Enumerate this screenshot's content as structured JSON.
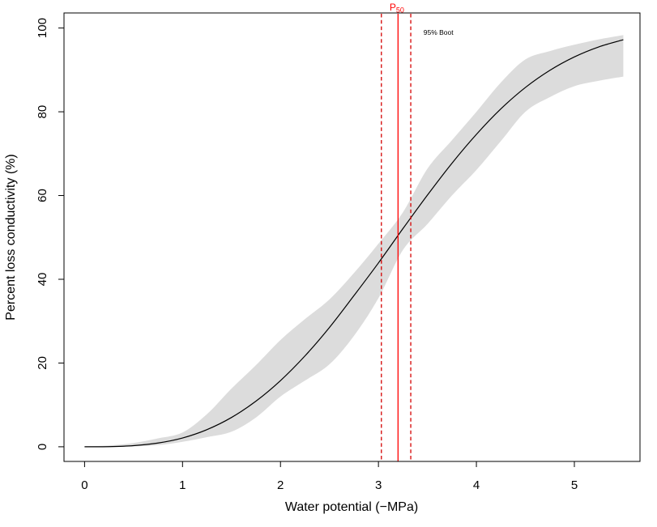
{
  "chart_data": {
    "type": "line",
    "title": "",
    "xlabel": "Water potential (−MPa)",
    "ylabel": "Percent loss conductivity (%)",
    "xlim": [
      -0.21,
      5.67
    ],
    "ylim": [
      -3.5,
      103.6
    ],
    "x_ticks": [
      0,
      1,
      2,
      3,
      4,
      5
    ],
    "y_ticks": [
      0,
      20,
      40,
      60,
      80,
      100
    ],
    "grid": false,
    "legend": "none",
    "x": [
      0,
      0.25,
      0.5,
      0.75,
      1,
      1.25,
      1.5,
      1.75,
      2,
      2.25,
      2.5,
      2.75,
      3,
      3.25,
      3.5,
      3.75,
      4,
      4.25,
      4.5,
      4.75,
      5,
      5.25,
      5.5
    ],
    "series": [
      {
        "name": "fitted-vulnerability-curve",
        "color": "#000000",
        "values": [
          0,
          0.03,
          0.27,
          0.9,
          2.1,
          4.1,
          7.0,
          10.9,
          15.8,
          21.7,
          28.5,
          36.1,
          43.9,
          52.1,
          60.1,
          67.7,
          74.6,
          80.7,
          85.8,
          89.9,
          93.1,
          95.5,
          97.2
        ]
      }
    ],
    "band": {
      "name": "95%-bootstrap-confidence-band",
      "color": "#DCDCDC",
      "lower": [
        0,
        0,
        0.1,
        0.4,
        1.2,
        2.3,
        3.6,
        7.0,
        12.0,
        15.8,
        19.7,
        26.5,
        35.5,
        47.0,
        53.2,
        60.0,
        66.1,
        73.0,
        80.0,
        83.5,
        86.1,
        87.4,
        88.4
      ],
      "upper": [
        0.1,
        0.3,
        0.9,
        2.0,
        3.4,
        7.8,
        13.9,
        19.5,
        25.5,
        30.5,
        35.2,
        41.5,
        48.5,
        56.0,
        66.4,
        73.2,
        80.0,
        87.0,
        92.5,
        94.5,
        96.0,
        97.3,
        98.3
      ]
    },
    "p50": 3.2,
    "p50_ci": [
      3.03,
      3.33
    ],
    "vlines": [
      {
        "name": "p50-line",
        "x": 3.2,
        "style": "solid",
        "color": "#FF0000"
      },
      {
        "name": "ci-lower-line",
        "x": 3.03,
        "style": "dashed",
        "color": "#D40000"
      },
      {
        "name": "ci-upper-line",
        "x": 3.33,
        "style": "dashed",
        "color": "#D40000"
      }
    ],
    "annotations": [
      {
        "name": "p50-label",
        "main": "P",
        "sub": "50",
        "color": "#FF0000",
        "x": 3.2,
        "align": "above-plot"
      },
      {
        "name": "boot-ci-label",
        "text": "95% Boot",
        "color": "#000000",
        "x": 3.46,
        "y": 98.4
      }
    ],
    "axis_color": "#000000",
    "background": "#FFFFFF"
  }
}
